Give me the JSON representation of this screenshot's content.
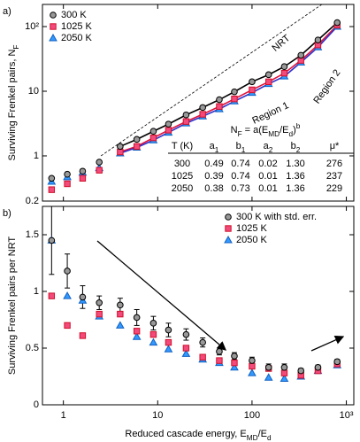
{
  "chart_data": [
    {
      "type": "scatter",
      "panel_label": "a)",
      "ylabel": [
        "Surviving Frenkel pairs, N",
        {
          "sub": "F"
        }
      ],
      "xlog": true,
      "ylog": true,
      "xlim": [
        0.6,
        1200
      ],
      "ylim": [
        0.2,
        220
      ],
      "yticks": [
        0.2,
        1,
        10,
        {
          "value": 100,
          "label": "10²"
        }
      ],
      "legend": "upper left",
      "x": [
        0.75,
        1.1,
        1.6,
        2.4,
        4,
        6,
        9,
        13,
        20,
        30,
        45,
        65,
        100,
        150,
        220,
        330,
        500,
        800
      ],
      "series": [
        {
          "name": "300 K",
          "marker": "circle",
          "color": "#999999",
          "edge": "#000000",
          "line": "#000000",
          "values": [
            0.45,
            0.52,
            0.58,
            0.8,
            1.4,
            1.8,
            2.4,
            3.1,
            4.3,
            5.6,
            7.4,
            9.8,
            14,
            18,
            24,
            36,
            62,
            115
          ]
        },
        {
          "name": "1025 K",
          "marker": "square",
          "color": "#f24a7a",
          "edge": "#d0102a",
          "line": "#e0103a",
          "values": [
            0.3,
            0.37,
            0.45,
            0.6,
            1.15,
            1.4,
            1.9,
            2.5,
            3.4,
            4.4,
            5.8,
            7.6,
            10.5,
            14,
            19,
            30,
            52,
            105
          ]
        },
        {
          "name": "2050 K",
          "marker": "triangle",
          "color": "#3399ff",
          "edge": "#1060c0",
          "line": "#3030c8",
          "values": [
            0.4,
            0.47,
            0.55,
            0.65,
            1.1,
            1.35,
            1.75,
            2.3,
            3.2,
            4.1,
            5.3,
            7.0,
            9.5,
            13,
            17,
            28,
            48,
            100
          ]
        }
      ],
      "nrt": {
        "label": "NRT",
        "x": [
          2.5,
          550
        ],
        "y": [
          1,
          220
        ]
      },
      "annotations": [
        "Region 1",
        "Region 2"
      ],
      "table": {
        "formula": [
          "N",
          {
            "sub": "F"
          },
          " = a(E",
          {
            "sub": "MD"
          },
          "/E",
          {
            "sub": "d"
          },
          ")",
          {
            "sup": "b"
          }
        ],
        "columns": [
          "T (K)",
          [
            "a",
            {
              "sub": "1"
            }
          ],
          [
            "b",
            {
              "sub": "1"
            }
          ],
          [
            "a",
            {
              "sub": "2"
            }
          ],
          [
            "b",
            {
              "sub": "2"
            }
          ],
          "μ*"
        ],
        "rows": [
          [
            "300",
            "0.49",
            "0.74",
            "0.02",
            "1.30",
            "276"
          ],
          [
            "1025",
            "0.39",
            "0.74",
            "0.01",
            "1.36",
            "237"
          ],
          [
            "2050",
            "0.38",
            "0.73",
            "0.01",
            "1.36",
            "229"
          ]
        ]
      }
    },
    {
      "type": "scatter",
      "panel_label": "b)",
      "ylabel": "Surviving Frenkel pairs per NRT",
      "xlabel": [
        "Reduced cascade energy, E",
        {
          "sub": "MD"
        },
        "/E",
        {
          "sub": "d"
        }
      ],
      "xlog": true,
      "ylog": false,
      "xlim": [
        0.6,
        1200
      ],
      "ylim": [
        0,
        1.75
      ],
      "xticks": [
        1,
        10,
        100,
        {
          "value": 1000,
          "label": "10³"
        }
      ],
      "yticks": [
        0,
        0.5,
        1,
        1.5
      ],
      "legend": "upper right",
      "x": [
        0.75,
        1.1,
        1.6,
        2.4,
        4,
        6,
        9,
        13,
        20,
        30,
        45,
        65,
        100,
        150,
        220,
        330,
        500,
        800
      ],
      "series": [
        {
          "name": "300 K with std. err.",
          "marker": "circle",
          "color": "#999999",
          "edge": "#000000",
          "values": [
            1.45,
            1.18,
            0.95,
            0.9,
            0.88,
            0.77,
            0.72,
            0.66,
            0.62,
            0.55,
            0.47,
            0.43,
            0.39,
            0.33,
            0.33,
            0.3,
            0.33,
            0.38
          ],
          "errors": [
            0.3,
            0.15,
            0.1,
            0.06,
            0.06,
            0.07,
            0.06,
            0.06,
            0.05,
            0.04,
            0.03,
            0.03,
            0.03,
            0.03,
            0.03,
            0.02,
            0.02,
            0.02
          ]
        },
        {
          "name": "1025 K",
          "marker": "square",
          "color": "#f24a7a",
          "edge": "#d0102a",
          "values": [
            0.96,
            0.7,
            0.61,
            0.8,
            0.8,
            0.65,
            0.62,
            0.55,
            0.5,
            0.42,
            0.39,
            0.37,
            0.34,
            0.32,
            0.28,
            0.26,
            0.3,
            0.36
          ]
        },
        {
          "name": "2050 K",
          "marker": "triangle",
          "color": "#3399ff",
          "edge": "#1060c0",
          "values": [
            1.45,
            0.96,
            0.92,
            0.78,
            0.7,
            0.6,
            0.55,
            0.49,
            0.45,
            0.4,
            0.37,
            0.33,
            0.28,
            0.24,
            0.23,
            0.25,
            0.3,
            0.35
          ]
        }
      ]
    }
  ]
}
